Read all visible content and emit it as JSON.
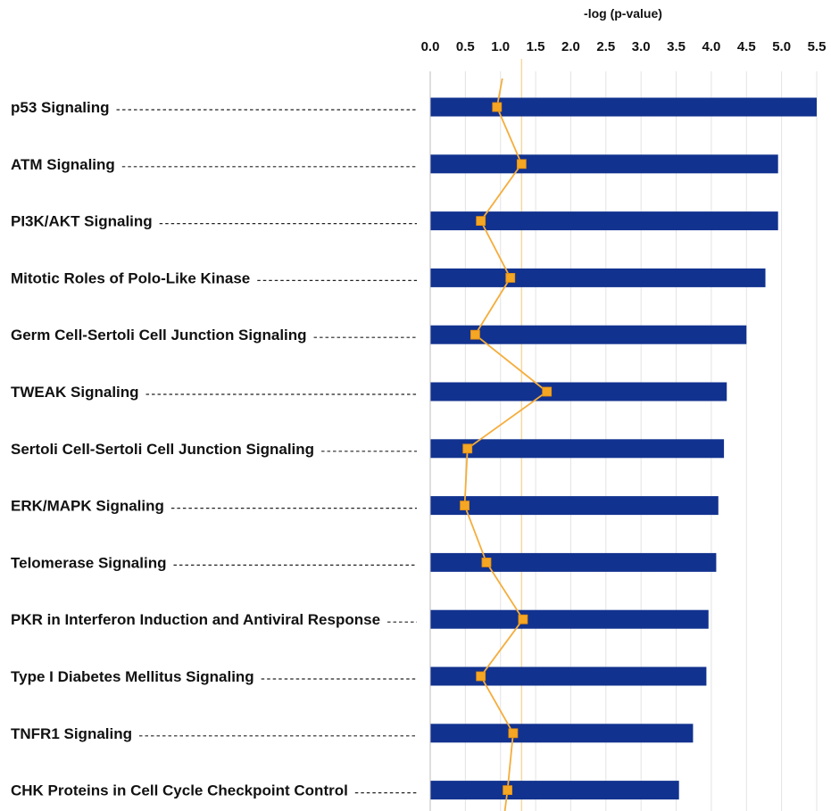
{
  "chart_data": {
    "type": "bar",
    "orientation": "horizontal",
    "xlabel": "-log (p-value)",
    "ylabel": "",
    "title": "",
    "xlim": [
      0,
      5.5
    ],
    "xticks": [
      "0.0",
      "0.5",
      "1.0",
      "1.5",
      "2.0",
      "2.5",
      "3.0",
      "3.5",
      "4.0",
      "4.5",
      "5.0",
      "5.5"
    ],
    "grid": true,
    "categories": [
      "p53 Signaling",
      "ATM Signaling",
      "PI3K/AKT Signaling",
      "Mitotic Roles of Polo-Like Kinase",
      "Germ Cell-Sertoli Cell Junction Signaling",
      "TWEAK Signaling",
      "Sertoli Cell-Sertoli Cell Junction Signaling",
      "ERK/MAPK Signaling",
      "Telomerase Signaling",
      "PKR in Interferon Induction and Antiviral Response",
      "Type I Diabetes Mellitus Signaling",
      "TNFR1 Signaling",
      "CHK Proteins in Cell Cycle Checkpoint Control"
    ],
    "series": [
      {
        "type": "bar",
        "values": [
          5.5,
          4.95,
          4.95,
          4.77,
          4.5,
          4.22,
          4.18,
          4.1,
          4.07,
          3.96,
          3.93,
          3.74,
          3.54
        ]
      },
      {
        "type": "line",
        "values": [
          0.95,
          1.3,
          0.72,
          1.14,
          0.64,
          1.66,
          0.53,
          0.49,
          0.8,
          1.32,
          0.72,
          1.18,
          1.1
        ]
      }
    ],
    "threshold": 1.3,
    "colors": {
      "bar": "#12328f",
      "line": "#f5ad3b",
      "marker": "#f5a623",
      "threshold": "#f6d9a3",
      "grid": "#e3e3e3",
      "axis": "#bdbdbd"
    }
  }
}
